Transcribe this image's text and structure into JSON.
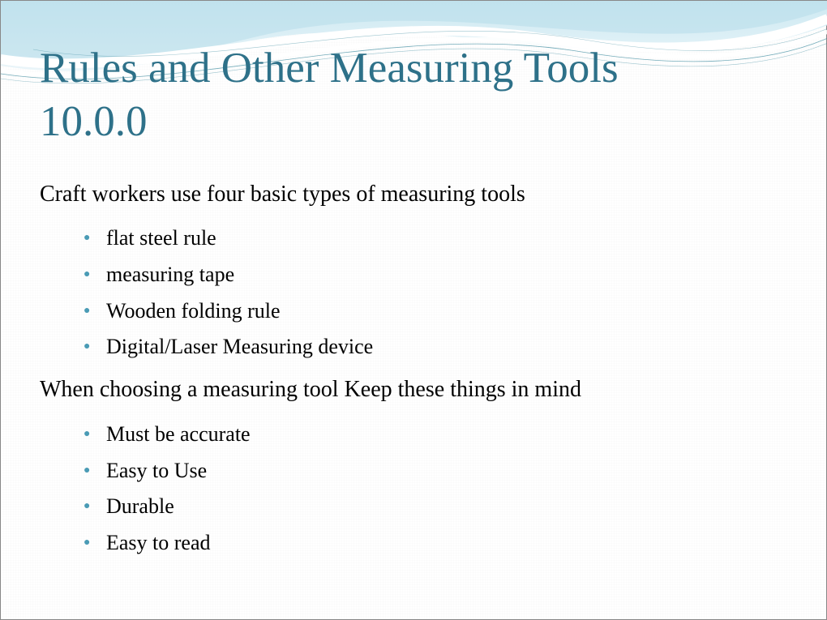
{
  "colors": {
    "title": "#2e7189",
    "bullet": "#4a9bb5",
    "wave_fill_light": "#d4ecf4",
    "wave_fill_mid": "#b7dce9",
    "wave_line_white": "#ffffff",
    "wave_line_thin": "#3a8a9e",
    "background": "#ffffff",
    "body_text": "#000000"
  },
  "typography": {
    "title_fontsize": 53,
    "intro_fontsize": 28,
    "bullet_fontsize": 26,
    "font_family": "Georgia"
  },
  "title_line1": "Rules and Other Measuring Tools",
  "title_line2": "10.0.0",
  "section1": {
    "intro": "Craft workers use four basic types of measuring tools",
    "items": [
      "flat steel rule",
      "measuring tape",
      "Wooden folding rule",
      "Digital/Laser Measuring device"
    ]
  },
  "section2": {
    "intro": "When choosing a measuring tool Keep these things in mind",
    "items": [
      "Must be accurate",
      "Easy to Use",
      "Durable",
      "Easy to read"
    ]
  }
}
